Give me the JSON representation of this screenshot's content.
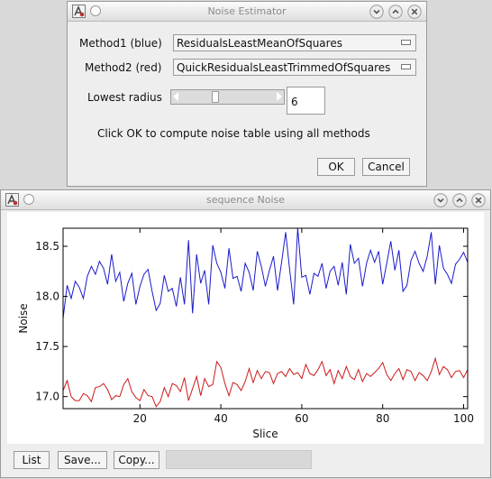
{
  "estimator_window": {
    "title": "Noise Estimator",
    "method1_label": "Method1 (blue)",
    "method1_value": "ResidualsLeastMeanOfSquares",
    "method2_label": "Method2 (red)",
    "method2_value": "QuickResidualsLeastTrimmedOfSquares",
    "radius_label": "Lowest radius",
    "radius_value": "6",
    "instruction": "Click OK to compute noise table using all methods",
    "ok_label": "OK",
    "cancel_label": "Cancel"
  },
  "plot_window": {
    "title": "sequence Noise",
    "list_label": "List",
    "save_label": "Save...",
    "copy_label": "Copy..."
  },
  "chart_data": {
    "type": "line",
    "title": "",
    "xlabel": "Slice",
    "ylabel": "Noise",
    "xlim": [
      1,
      101
    ],
    "ylim": [
      16.88,
      18.68
    ],
    "xticks": [
      20,
      40,
      60,
      80,
      100
    ],
    "yticks": [
      17.0,
      17.5,
      18.0,
      18.5
    ],
    "series": [
      {
        "color": "#1a1acc",
        "x": [
          1,
          2,
          3,
          4,
          5,
          6,
          7,
          8,
          9,
          10,
          11,
          12,
          13,
          14,
          15,
          16,
          17,
          18,
          19,
          20,
          21,
          22,
          23,
          24,
          25,
          26,
          27,
          28,
          29,
          30,
          31,
          32,
          33,
          34,
          35,
          36,
          37,
          38,
          39,
          40,
          41,
          42,
          43,
          44,
          45,
          46,
          47,
          48,
          49,
          50,
          51,
          52,
          53,
          54,
          55,
          56,
          57,
          58,
          59,
          60,
          61,
          62,
          63,
          64,
          65,
          66,
          67,
          68,
          69,
          70,
          71,
          72,
          73,
          74,
          75,
          76,
          77,
          78,
          79,
          80,
          81,
          82,
          83,
          84,
          85,
          86,
          87,
          88,
          89,
          90,
          91,
          92,
          93,
          94,
          95,
          96,
          97,
          98,
          99,
          100,
          101
        ],
        "y": [
          17.78,
          18.11,
          17.98,
          18.15,
          18.09,
          17.98,
          18.2,
          18.3,
          18.22,
          18.35,
          18.28,
          18.12,
          18.42,
          18.15,
          18.24,
          17.95,
          18.13,
          18.23,
          17.92,
          18.1,
          18.22,
          18.27,
          18.05,
          17.86,
          17.93,
          18.21,
          18.05,
          18.08,
          17.9,
          18.19,
          17.92,
          18.56,
          17.83,
          18.42,
          18.13,
          18.26,
          17.92,
          18.51,
          18.33,
          18.24,
          18.08,
          18.48,
          18.18,
          18.2,
          18.05,
          18.33,
          18.24,
          18.06,
          18.45,
          18.3,
          18.1,
          18.26,
          18.4,
          18.06,
          18.34,
          18.64,
          18.27,
          17.92,
          18.68,
          18.19,
          18.21,
          18.02,
          18.23,
          18.2,
          18.33,
          18.08,
          18.25,
          18.3,
          18.11,
          18.34,
          18.02,
          18.52,
          18.33,
          18.38,
          18.1,
          18.33,
          18.46,
          18.34,
          18.45,
          18.12,
          18.33,
          18.55,
          18.26,
          18.46,
          18.05,
          18.11,
          18.36,
          18.45,
          18.33,
          18.25,
          18.4,
          18.64,
          18.12,
          18.51,
          18.28,
          18.22,
          18.13,
          18.32,
          18.37,
          18.44,
          18.34
        ]
      },
      {
        "color": "#cc1a1a",
        "x": [
          1,
          2,
          3,
          4,
          5,
          6,
          7,
          8,
          9,
          10,
          11,
          12,
          13,
          14,
          15,
          16,
          17,
          18,
          19,
          20,
          21,
          22,
          23,
          24,
          25,
          26,
          27,
          28,
          29,
          30,
          31,
          32,
          33,
          34,
          35,
          36,
          37,
          38,
          39,
          40,
          41,
          42,
          43,
          44,
          45,
          46,
          47,
          48,
          49,
          50,
          51,
          52,
          53,
          54,
          55,
          56,
          57,
          58,
          59,
          60,
          61,
          62,
          63,
          64,
          65,
          66,
          67,
          68,
          69,
          70,
          71,
          72,
          73,
          74,
          75,
          76,
          77,
          78,
          79,
          80,
          81,
          82,
          83,
          84,
          85,
          86,
          87,
          88,
          89,
          90,
          91,
          92,
          93,
          94,
          95,
          96,
          97,
          98,
          99,
          100,
          101
        ],
        "y": [
          17.06,
          17.16,
          17.0,
          16.96,
          16.96,
          17.03,
          17.01,
          16.95,
          17.09,
          17.1,
          17.13,
          17.07,
          16.97,
          17.01,
          17.0,
          17.12,
          17.18,
          17.05,
          16.99,
          16.96,
          17.07,
          17.01,
          17.0,
          16.9,
          16.95,
          17.09,
          17.0,
          17.13,
          17.11,
          17.05,
          17.19,
          16.96,
          17.08,
          17.2,
          17.01,
          17.18,
          17.1,
          17.12,
          17.35,
          17.29,
          17.13,
          17.01,
          17.14,
          17.12,
          17.06,
          17.15,
          17.28,
          17.14,
          17.26,
          17.18,
          17.25,
          17.24,
          17.13,
          17.23,
          17.25,
          17.2,
          17.28,
          17.22,
          17.24,
          17.18,
          17.32,
          17.23,
          17.21,
          17.27,
          17.35,
          17.21,
          17.27,
          17.13,
          17.26,
          17.18,
          17.3,
          17.2,
          17.17,
          17.27,
          17.15,
          17.23,
          17.2,
          17.24,
          17.28,
          17.34,
          17.22,
          17.16,
          17.23,
          17.28,
          17.17,
          17.27,
          17.25,
          17.16,
          17.24,
          17.21,
          17.16,
          17.25,
          17.38,
          17.22,
          17.3,
          17.27,
          17.19,
          17.25,
          17.26,
          17.19,
          17.27
        ]
      }
    ]
  }
}
